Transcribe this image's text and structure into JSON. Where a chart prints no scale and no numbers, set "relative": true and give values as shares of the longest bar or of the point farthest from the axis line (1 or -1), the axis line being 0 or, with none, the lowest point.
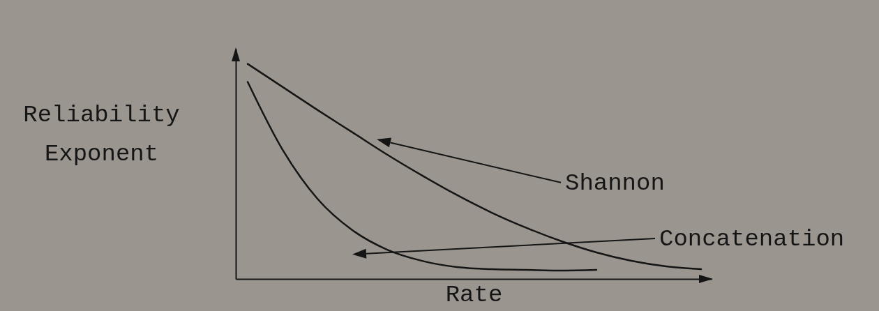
{
  "chart_data": {
    "type": "line",
    "relative": true,
    "xlabel": "Rate",
    "ylabel": "Reliability Exponent",
    "categories": [
      null,
      null,
      null,
      null,
      null,
      null,
      null,
      null,
      null,
      null,
      null,
      null,
      null,
      null
    ],
    "series": [
      {
        "name": "Shannon",
        "color": "#151515",
        "values": [
          1,
          0.893,
          0.786,
          0.682,
          0.578,
          0.481,
          0.39,
          0.308,
          0.237,
          0.175,
          0.123,
          0.084,
          0.058,
          0.045
        ]
      },
      {
        "name": "Concatenation",
        "color": "#151515",
        "values": [
          0.916,
          0.601,
          0.373,
          0.227,
          0.136,
          0.084,
          0.055,
          0.045,
          0.042,
          0.039,
          0.042,
          null,
          null,
          null
        ]
      }
    ]
  }
}
